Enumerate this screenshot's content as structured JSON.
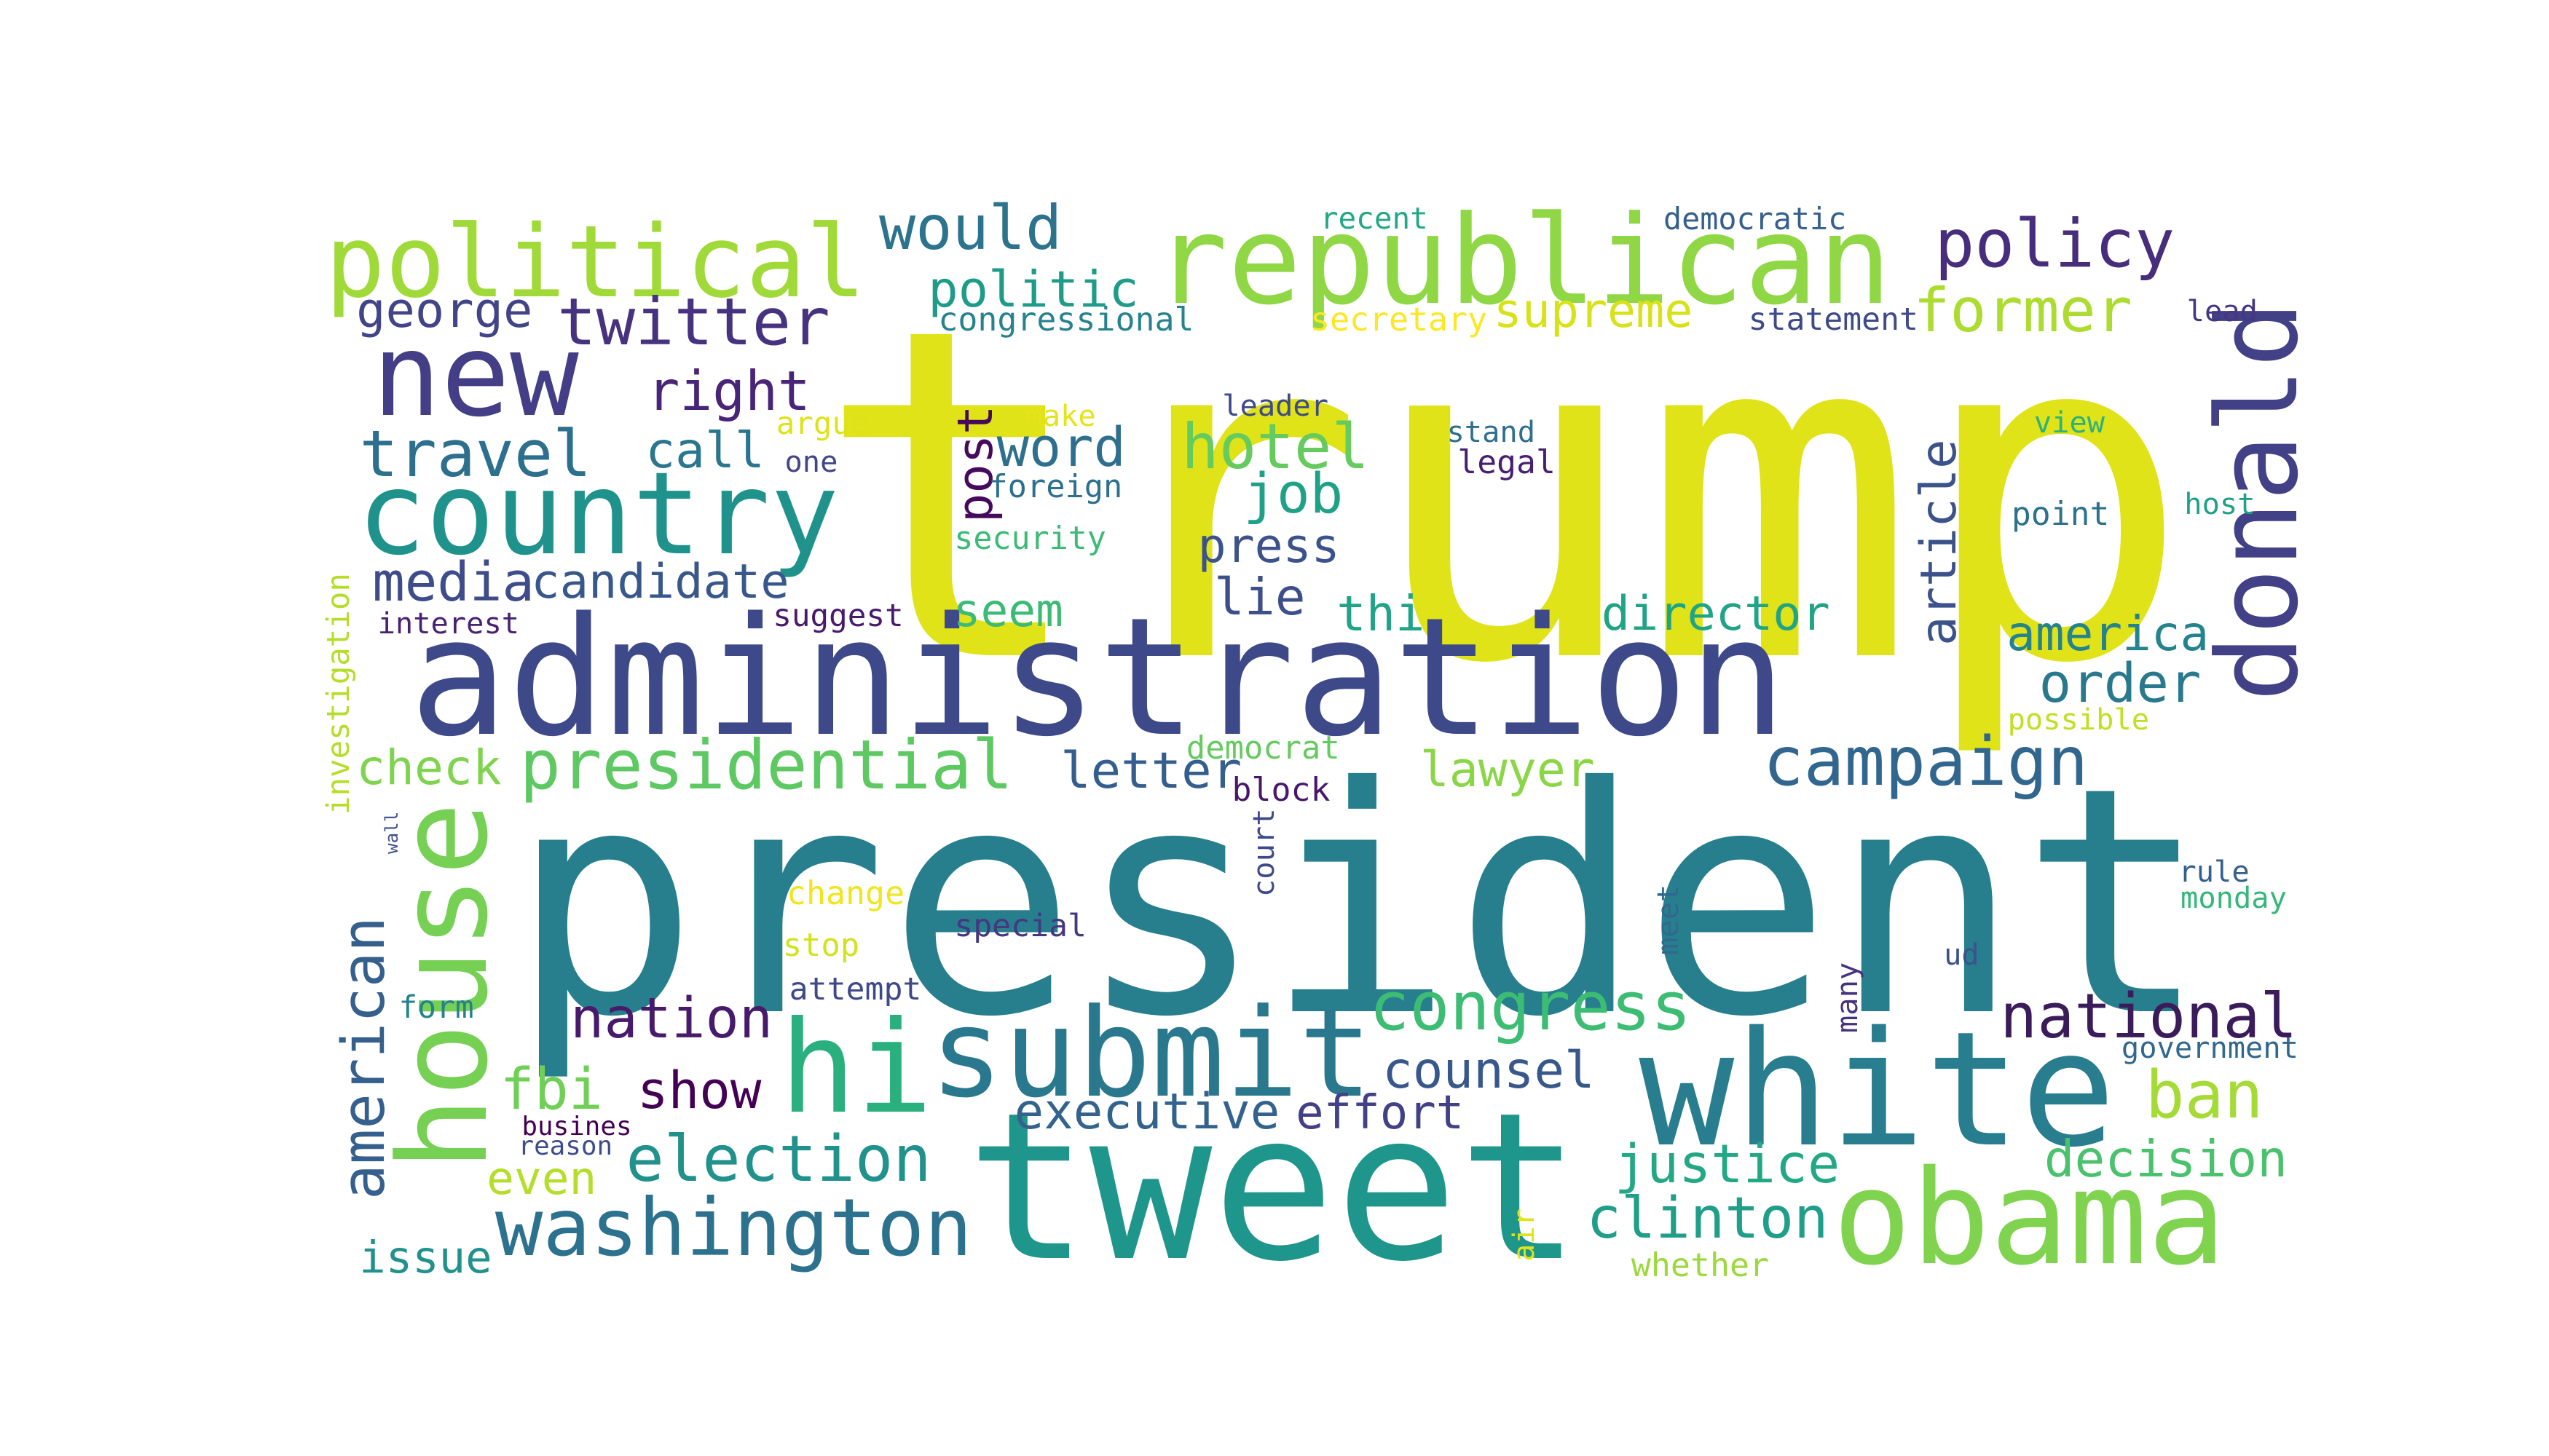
{
  "words": [
    {
      "text": "trump",
      "color": "#dfe318",
      "vertical": false
    },
    {
      "text": "president",
      "color": "#277f8e",
      "vertical": false
    },
    {
      "text": "administration",
      "color": "#3e4989",
      "vertical": false
    },
    {
      "text": "tweet",
      "color": "#1f968b",
      "vertical": false
    },
    {
      "text": "white",
      "color": "#287d8e",
      "vertical": false
    },
    {
      "text": "republican",
      "color": "#8fd744",
      "vertical": false
    },
    {
      "text": "submit",
      "color": "#2a788e",
      "vertical": false
    },
    {
      "text": "country",
      "color": "#20928c",
      "vertical": false
    },
    {
      "text": "new",
      "color": "#433e85",
      "vertical": false
    },
    {
      "text": "political",
      "color": "#a0da39",
      "vertical": false
    },
    {
      "text": "obama",
      "color": "#7fd34e",
      "vertical": false
    },
    {
      "text": "donald",
      "color": "#424086",
      "vertical": true
    },
    {
      "text": "house",
      "color": "#75d054",
      "vertical": true
    },
    {
      "text": "hi",
      "color": "#2ab07f",
      "vertical": false
    },
    {
      "text": "washington",
      "color": "#2c728e",
      "vertical": false
    },
    {
      "text": "presidential",
      "color": "#5ec962",
      "vertical": false
    },
    {
      "text": "campaign",
      "color": "#31668e",
      "vertical": false
    },
    {
      "text": "congress",
      "color": "#3dbc74",
      "vertical": false
    },
    {
      "text": "american",
      "color": "#355f8d",
      "vertical": true
    },
    {
      "text": "national",
      "color": "#3b1c5a",
      "vertical": false
    },
    {
      "text": "twitter",
      "color": "#46327e",
      "vertical": false
    },
    {
      "text": "policy",
      "color": "#472d7b",
      "vertical": false
    },
    {
      "text": "election",
      "color": "#21918c",
      "vertical": false
    },
    {
      "text": "clinton",
      "color": "#1f9e89",
      "vertical": false
    },
    {
      "text": "justice",
      "color": "#22a884",
      "vertical": false
    },
    {
      "text": "decision",
      "color": "#4ac16d",
      "vertical": false
    },
    {
      "text": "ban",
      "color": "#a5db36",
      "vertical": false
    },
    {
      "text": "hotel",
      "color": "#65cb5e",
      "vertical": false
    },
    {
      "text": "would",
      "color": "#2c738e",
      "vertical": false
    },
    {
      "text": "former",
      "color": "#addc30",
      "vertical": false
    },
    {
      "text": "travel",
      "color": "#2d708e",
      "vertical": false
    },
    {
      "text": "right",
      "color": "#482576",
      "vertical": false
    },
    {
      "text": "nation",
      "color": "#481a6c",
      "vertical": false
    },
    {
      "text": "executive",
      "color": "#33638d",
      "vertical": false
    },
    {
      "text": "effort",
      "color": "#424086",
      "vertical": false
    },
    {
      "text": "counsel",
      "color": "#38588c",
      "vertical": false
    },
    {
      "text": "article",
      "color": "#3b528b",
      "vertical": true
    },
    {
      "text": "order",
      "color": "#29798e",
      "vertical": false
    },
    {
      "text": "america",
      "color": "#25838e",
      "vertical": false
    },
    {
      "text": "director",
      "color": "#20a486",
      "vertical": false
    },
    {
      "text": "lawyer",
      "color": "#8bd646",
      "vertical": false
    },
    {
      "text": "letter",
      "color": "#345e8d",
      "vertical": false
    },
    {
      "text": "fbi",
      "color": "#70cf57",
      "vertical": false
    },
    {
      "text": "show",
      "color": "#440154",
      "vertical": false
    },
    {
      "text": "media",
      "color": "#3e4c8a",
      "vertical": false
    },
    {
      "text": "candidate",
      "color": "#38588c",
      "vertical": false
    },
    {
      "text": "politic",
      "color": "#1e9c89",
      "vertical": false
    },
    {
      "text": "supreme",
      "color": "#d8e219",
      "vertical": false
    },
    {
      "text": "george",
      "color": "#414487",
      "vertical": false
    },
    {
      "text": "call",
      "color": "#2a768e",
      "vertical": false
    },
    {
      "text": "word",
      "color": "#2e6e8e",
      "vertical": false
    },
    {
      "text": "job",
      "color": "#1fa188",
      "vertical": false
    },
    {
      "text": "post",
      "color": "#460a5d",
      "vertical": true
    },
    {
      "text": "press",
      "color": "#3b528b",
      "vertical": false
    },
    {
      "text": "lie",
      "color": "#3c4f8a",
      "vertical": false
    },
    {
      "text": "seem",
      "color": "#3bbb75",
      "vertical": false
    },
    {
      "text": "thi",
      "color": "#20a386",
      "vertical": false
    },
    {
      "text": "check",
      "color": "#7fd34e",
      "vertical": false
    },
    {
      "text": "even",
      "color": "#b5de2b",
      "vertical": false
    },
    {
      "text": "issue",
      "color": "#21918c",
      "vertical": false
    },
    {
      "text": "congressional",
      "color": "#26828e",
      "vertical": false
    },
    {
      "text": "secretary",
      "color": "#fde725",
      "vertical": false
    },
    {
      "text": "statement",
      "color": "#3e4a89",
      "vertical": false
    },
    {
      "text": "recent",
      "color": "#22a884",
      "vertical": false
    },
    {
      "text": "democratic",
      "color": "#355f8d",
      "vertical": false
    },
    {
      "text": "lead",
      "color": "#453781",
      "vertical": false
    },
    {
      "text": "argue",
      "color": "#dde318",
      "vertical": false
    },
    {
      "text": "make",
      "color": "#e5e419",
      "vertical": false
    },
    {
      "text": "one",
      "color": "#404688",
      "vertical": false
    },
    {
      "text": "foreign",
      "color": "#2d708e",
      "vertical": false
    },
    {
      "text": "security",
      "color": "#3bbb75",
      "vertical": false
    },
    {
      "text": "leader",
      "color": "#3e4a89",
      "vertical": false
    },
    {
      "text": "stand",
      "color": "#2e6e8e",
      "vertical": false
    },
    {
      "text": "legal",
      "color": "#481f70",
      "vertical": false
    },
    {
      "text": "view",
      "color": "#2db27d",
      "vertical": false
    },
    {
      "text": "point",
      "color": "#2c728e",
      "vertical": false
    },
    {
      "text": "host",
      "color": "#1fa187",
      "vertical": false
    },
    {
      "text": "possible",
      "color": "#c2df23",
      "vertical": false
    },
    {
      "text": "suggest",
      "color": "#481a6c",
      "vertical": false
    },
    {
      "text": "interest",
      "color": "#482173",
      "vertical": false
    },
    {
      "text": "investigation",
      "color": "#b5de2b",
      "vertical": true
    },
    {
      "text": "wall",
      "color": "#3c508b",
      "vertical": true
    },
    {
      "text": "democrat",
      "color": "#65cb5e",
      "vertical": false
    },
    {
      "text": "block",
      "color": "#481769",
      "vertical": false
    },
    {
      "text": "court",
      "color": "#3e4a89",
      "vertical": true
    },
    {
      "text": "meet",
      "color": "#31688e",
      "vertical": true
    },
    {
      "text": "many",
      "color": "#46327e",
      "vertical": true
    },
    {
      "text": "change",
      "color": "#f1e51d",
      "vertical": false
    },
    {
      "text": "stop",
      "color": "#d2e21b",
      "vertical": false
    },
    {
      "text": "special",
      "color": "#453781",
      "vertical": false
    },
    {
      "text": "attempt",
      "color": "#3e4989",
      "vertical": false
    },
    {
      "text": "form",
      "color": "#26828e",
      "vertical": false
    },
    {
      "text": "busines",
      "color": "#440154",
      "vertical": false
    },
    {
      "text": "reason",
      "color": "#3e4c8a",
      "vertical": false
    },
    {
      "text": "air",
      "color": "#dfe318",
      "vertical": true
    },
    {
      "text": "whether",
      "color": "#9bd93c",
      "vertical": false
    },
    {
      "text": "rule",
      "color": "#355f8d",
      "vertical": false
    },
    {
      "text": "monday",
      "color": "#35b779",
      "vertical": false
    },
    {
      "text": "ud",
      "color": "#3b528b",
      "vertical": false
    },
    {
      "text": "government",
      "color": "#31688e",
      "vertical": false
    }
  ]
}
